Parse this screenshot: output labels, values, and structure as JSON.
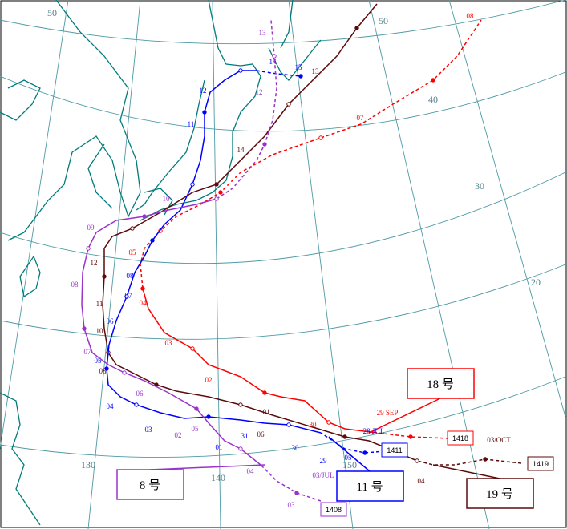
{
  "map": {
    "grid_labels": [
      "50",
      "50",
      "40",
      "30",
      "20",
      "130",
      "140",
      "150"
    ],
    "tracks": [
      {
        "id": "1419",
        "name": "19 号",
        "color": "#5c0a0a",
        "points": [
          "03/OCT",
          "04",
          "01",
          "06",
          "08",
          "10",
          "11",
          "12",
          "14",
          "13"
        ]
      },
      {
        "id": "1418",
        "name": "18 号",
        "color": "#ff0000",
        "points": [
          "29 SEP",
          "30",
          "02",
          "03",
          "04",
          "05",
          "07",
          "08"
        ]
      },
      {
        "id": "1411",
        "name": "11 号",
        "color": "#0000ff",
        "points": [
          "29",
          "30",
          "31",
          "01",
          "03",
          "04",
          "05",
          "06",
          "07",
          "08",
          "11",
          "12",
          "14",
          "15",
          "05",
          "28 JUL"
        ]
      },
      {
        "id": "1408",
        "name": "8 号",
        "color": "#9933cc",
        "points": [
          "03",
          "04",
          "05",
          "06",
          "07",
          "08",
          "09",
          "10",
          "12",
          "13",
          "02",
          "03/JUL"
        ]
      }
    ]
  }
}
